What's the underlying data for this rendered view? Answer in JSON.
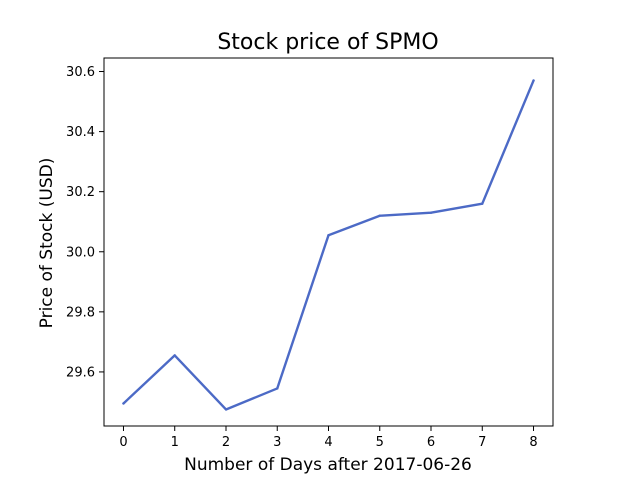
{
  "chart_data": {
    "type": "line",
    "title": "Stock price of SPMO",
    "xlabel": "Number of Days after 2017-06-26",
    "ylabel": "Price of Stock (USD)",
    "x": [
      0,
      1,
      2,
      3,
      4,
      5,
      6,
      7,
      8
    ],
    "series": [
      {
        "values": [
          29.495,
          29.655,
          29.475,
          29.545,
          30.055,
          30.12,
          30.13,
          30.16,
          30.57
        ],
        "color": "#4c6ac6"
      }
    ],
    "xlim": [
      -0.38,
      8.38
    ],
    "ylim": [
      29.42,
      30.645
    ],
    "xticks": [
      0,
      1,
      2,
      3,
      4,
      5,
      6,
      7,
      8
    ],
    "yticks": [
      29.6,
      29.8,
      30.0,
      30.2,
      30.4,
      30.6
    ],
    "ytick_labels": [
      "29.6",
      "29.8",
      "30.0",
      "30.2",
      "30.4",
      "30.6"
    ],
    "grid": false,
    "legend": "none"
  }
}
